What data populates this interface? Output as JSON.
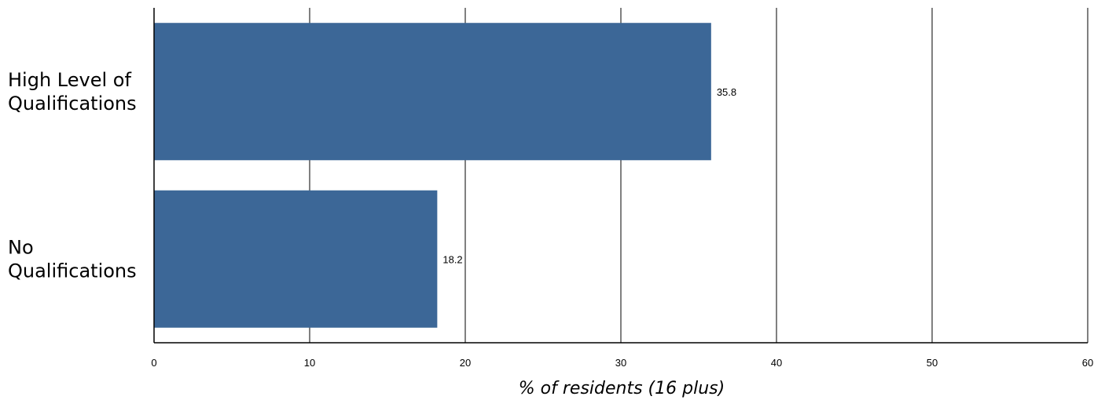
{
  "chart_data": {
    "type": "bar",
    "orientation": "horizontal",
    "categories": [
      "High Level of Qualifications",
      "No Qualifications"
    ],
    "category_label_lines": [
      [
        "High Level of",
        "Qualifications"
      ],
      [
        "No",
        "Qualifications"
      ]
    ],
    "values": [
      35.8,
      18.2
    ],
    "value_labels": [
      "35.8",
      "18.2"
    ],
    "xlabel": "% of residents (16 plus)",
    "ylabel": "",
    "xlim": [
      0,
      60
    ],
    "xticks": [
      0,
      10,
      20,
      30,
      40,
      50,
      60
    ],
    "xtick_labels": [
      "0",
      "10",
      "20",
      "30",
      "40",
      "50",
      "60"
    ],
    "grid": "vertical",
    "legend": "none",
    "bar_color": "#3c6797"
  }
}
